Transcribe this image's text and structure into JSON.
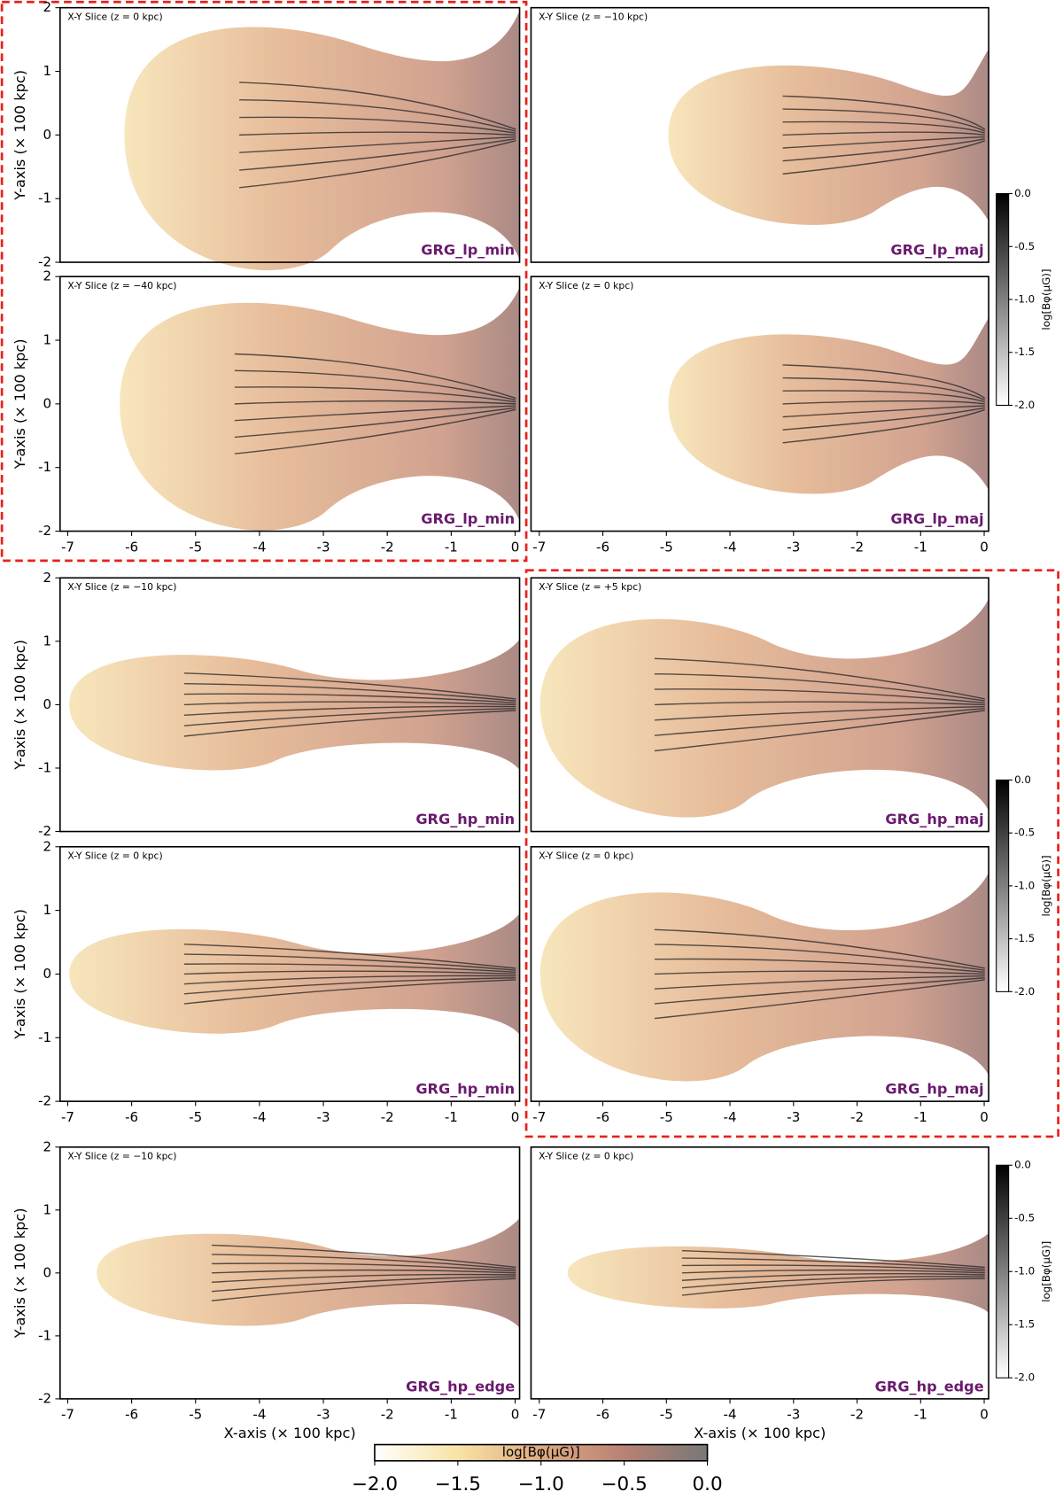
{
  "chart_data": [
    {
      "type": "heatmap",
      "slice_label": "X-Y Slice (z = 0 kpc)",
      "run_label": "GRG_lp_min",
      "xlim": [
        -7.12,
        0.07
      ],
      "ylim": [
        -2,
        2
      ],
      "yticks": [
        -2,
        -1,
        0,
        1,
        2
      ],
      "ylabel": "Y-axis (× 100 kpc)"
    },
    {
      "type": "heatmap",
      "slice_label": "X-Y Slice (z = −10 kpc)",
      "run_label": "GRG_lp_maj",
      "xlim": [
        -7.13,
        0.07
      ],
      "ylim": [
        -2,
        2
      ]
    },
    {
      "type": "heatmap",
      "slice_label": "X-Y Slice (z = −40 kpc)",
      "run_label": "GRG_lp_min",
      "xlim": [
        -7.12,
        0.07
      ],
      "ylim": [
        -2,
        2
      ],
      "xticks": [
        -7,
        -6,
        -5,
        -4,
        -3,
        -2,
        -1,
        0
      ],
      "yticks": [
        -2,
        -1,
        0,
        1,
        2
      ],
      "ylabel": "Y-axis (× 100 kpc)"
    },
    {
      "type": "heatmap",
      "slice_label": "X-Y Slice (z = 0 kpc)",
      "run_label": "GRG_lp_maj",
      "xlim": [
        -7.13,
        0.07
      ],
      "ylim": [
        -2,
        2
      ],
      "xticks": [
        -7,
        -6,
        -5,
        -4,
        -3,
        -2,
        -1,
        0
      ]
    },
    {
      "type": "heatmap",
      "slice_label": "X-Y Slice (z = −10 kpc)",
      "run_label": "GRG_hp_min",
      "xlim": [
        -7.12,
        0.07
      ],
      "ylim": [
        -2,
        2
      ],
      "yticks": [
        -2,
        -1,
        0,
        1,
        2
      ],
      "ylabel": "Y-axis (× 100 kpc)"
    },
    {
      "type": "heatmap",
      "slice_label": "X-Y Slice (z = +5 kpc)",
      "run_label": "GRG_hp_maj",
      "xlim": [
        -7.13,
        0.07
      ],
      "ylim": [
        -2,
        2
      ]
    },
    {
      "type": "heatmap",
      "slice_label": "X-Y Slice (z = 0 kpc)",
      "run_label": "GRG_hp_min",
      "xlim": [
        -7.12,
        0.07
      ],
      "ylim": [
        -2,
        2
      ],
      "xticks": [
        -7,
        -6,
        -5,
        -4,
        -3,
        -2,
        -1,
        0
      ],
      "yticks": [
        -2,
        -1,
        0,
        1,
        2
      ],
      "ylabel": "Y-axis (× 100 kpc)"
    },
    {
      "type": "heatmap",
      "slice_label": "X-Y Slice (z = 0 kpc)",
      "run_label": "GRG_hp_maj",
      "xlim": [
        -7.13,
        0.07
      ],
      "ylim": [
        -2,
        2
      ],
      "xticks": [
        -7,
        -6,
        -5,
        -4,
        -3,
        -2,
        -1,
        0
      ]
    },
    {
      "type": "heatmap",
      "slice_label": "X-Y Slice (z = −10 kpc)",
      "run_label": "GRG_hp_edge",
      "xlim": [
        -7.12,
        0.07
      ],
      "ylim": [
        -2,
        2
      ],
      "xticks": [
        -7,
        -6,
        -5,
        -4,
        -3,
        -2,
        -1,
        0
      ],
      "yticks": [
        -2,
        -1,
        0,
        1,
        2
      ],
      "ylabel": "Y-axis (× 100 kpc)",
      "xlabel": "X-axis (× 100 kpc)"
    },
    {
      "type": "heatmap",
      "slice_label": "X-Y Slice (z = 0 kpc)",
      "run_label": "GRG_hp_edge",
      "xlim": [
        -7.13,
        0.07
      ],
      "ylim": [
        -2,
        2
      ],
      "xticks": [
        -7,
        -6,
        -5,
        -4,
        -3,
        -2,
        -1,
        0
      ],
      "xlabel": "X-axis (× 100 kpc)"
    },
    {
      "type": "colorbar",
      "orientation": "vertical",
      "label": "log[Bφ(μG)]",
      "lim": [
        -2,
        0
      ],
      "colors": [
        "#ffffff",
        "#000000"
      ],
      "ticks": [
        {
          "value": 0,
          "label": "0.0"
        },
        -0.5,
        {
          "value": -1,
          "label": "-1.0"
        },
        -1.5,
        {
          "value": -2,
          "label": "-2.0"
        }
      ]
    },
    {
      "type": "colorbar",
      "orientation": "vertical",
      "label": "log[Bφ(μG)]",
      "lim": [
        -2,
        0
      ],
      "colors": [
        "#ffffff",
        "#000000"
      ],
      "ticks": [
        {
          "value": 0,
          "label": "0.0"
        },
        -0.5,
        {
          "value": -1,
          "label": "-1.0"
        },
        -1.5,
        {
          "value": -2,
          "label": "-2.0"
        }
      ]
    },
    {
      "type": "colorbar",
      "orientation": "vertical",
      "label": "log[Bφ(μG)]",
      "lim": [
        -2,
        0
      ],
      "colors": [
        "#ffffff",
        "#000000"
      ],
      "ticks": [
        {
          "value": 0,
          "label": "0.0"
        },
        -0.5,
        {
          "value": -1,
          "label": "-1.0"
        },
        -1.5,
        {
          "value": -2,
          "label": "-2.0"
        }
      ]
    },
    {
      "type": "colorbar",
      "orientation": "horizontal",
      "label": "log[Bφ(μG)]",
      "lim": [
        -2,
        0
      ],
      "colors": [
        "#ffffff",
        "#f8e3a4",
        "#deaa82",
        "#b88274",
        "#787878"
      ],
      "ticks": [
        {
          "value": -2,
          "label": "−2.0"
        },
        {
          "value": -1.5,
          "label": "−1.5"
        },
        {
          "value": -1,
          "label": "−1.0"
        },
        {
          "value": -0.5,
          "label": "−0.5"
        },
        {
          "value": 0,
          "label": "0.0"
        }
      ]
    }
  ]
}
